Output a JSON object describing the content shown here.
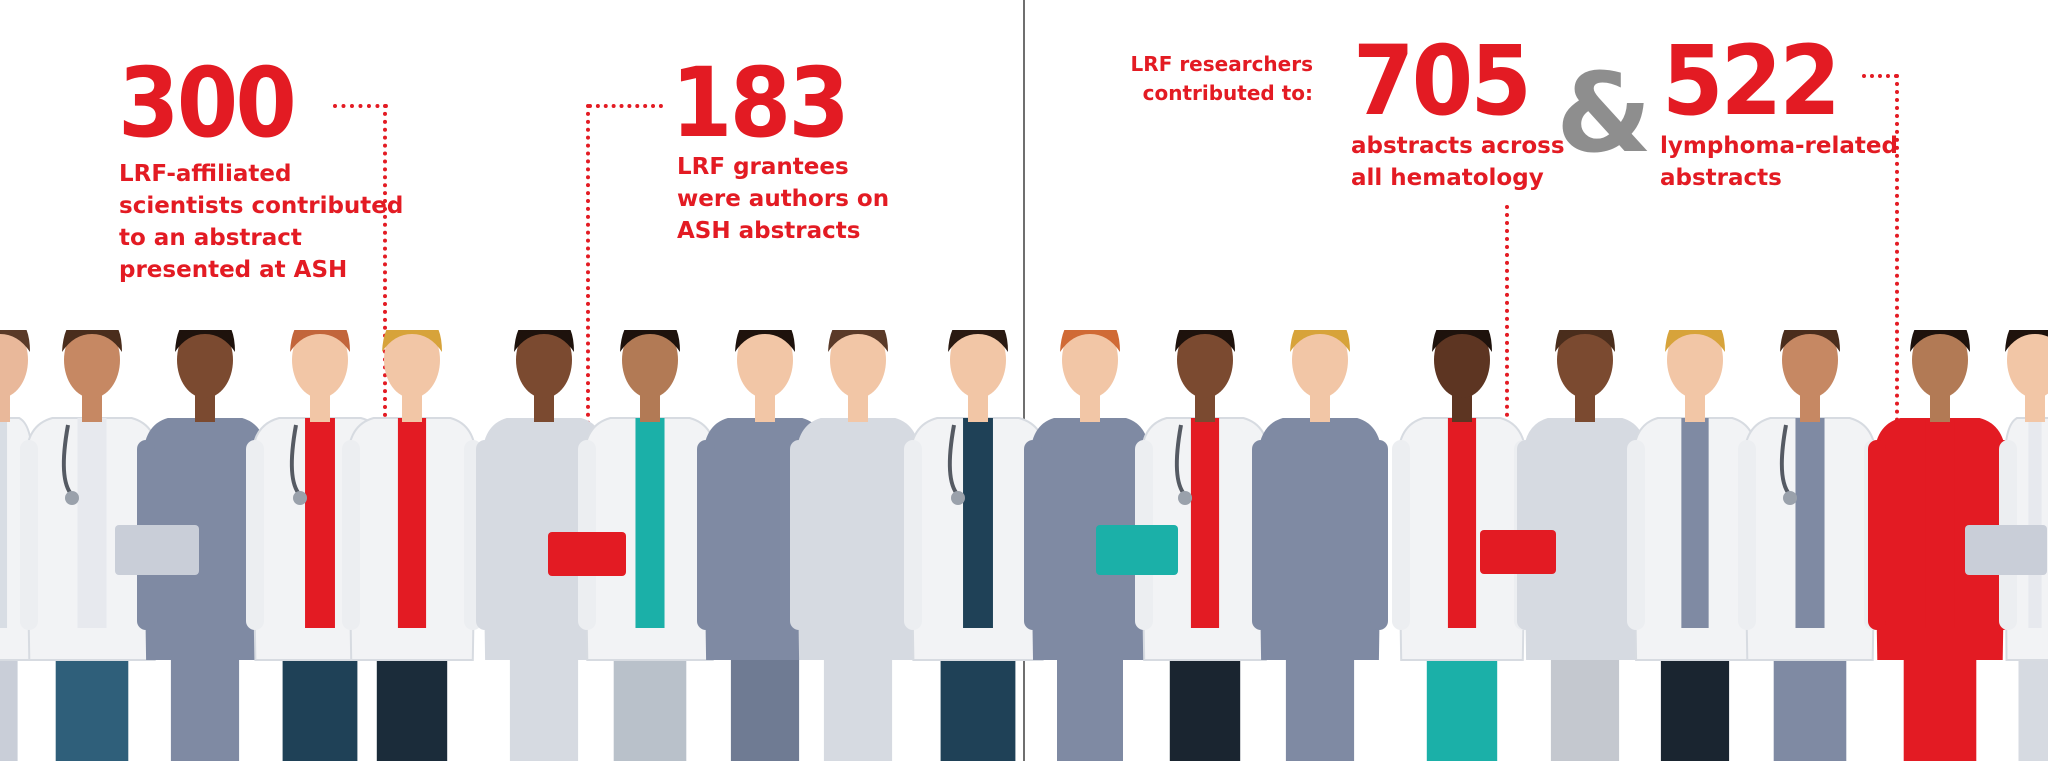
{
  "stats": {
    "left1": {
      "number": "300",
      "caption": "LRF-affiliated\nscientists contributed\nto an abstract\npresented at ASH"
    },
    "left2": {
      "number": "183",
      "caption": "LRF grantees\nwere authors on\nASH abstracts"
    },
    "right": {
      "lead": "LRF researchers\ncontributed to:",
      "amp": "&",
      "a": {
        "number": "705",
        "caption": "abstracts across\nall hematology"
      },
      "b": {
        "number": "522",
        "caption": "lymphoma-related\nabstracts"
      }
    }
  },
  "colors": {
    "accent": "#e31b23",
    "amp": "#8e8e8e",
    "divider": "#6f6f6f"
  },
  "illustration": {
    "description_icon": "group-of-medical-professionals-illustration"
  }
}
